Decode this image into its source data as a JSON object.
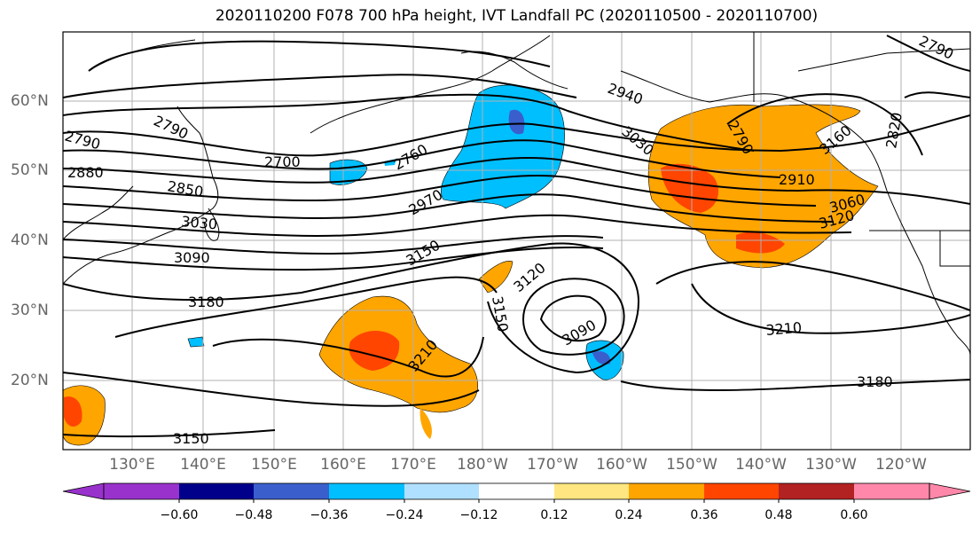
{
  "title": "2020110200 F078 700 hPa height, IVT Landfall PC (2020110500 - 2020110700)",
  "lat_labels": [
    "60°N",
    "50°N",
    "40°N",
    "30°N",
    "20°N"
  ],
  "lon_labels": [
    "130°E",
    "140°E",
    "150°E",
    "160°E",
    "170°E",
    "180°W",
    "170°W",
    "160°W",
    "150°W",
    "140°W",
    "130°W",
    "120°W"
  ],
  "contour_labels": [
    "2790",
    "2790",
    "2880",
    "2850",
    "3030",
    "3030",
    "3090",
    "3180",
    "3150",
    "2700",
    "2760",
    "2970",
    "3150",
    "2940",
    "3030",
    "3120",
    "3150",
    "3090",
    "3210",
    "2790",
    "2910",
    "3060",
    "3120",
    "3160",
    "2820",
    "3210",
    "3180",
    "2790"
  ],
  "colorbar": {
    "ticks": [
      "−0.60",
      "−0.48",
      "−0.36",
      "−0.24",
      "−0.12",
      "0.12",
      "0.24",
      "0.36",
      "0.48",
      "0.60"
    ],
    "colors": [
      "#9932cc",
      "#00008b",
      "#3a5fcd",
      "#00bfff",
      "#b0e0ff",
      "#ffffff",
      "#ffe680",
      "#ffa500",
      "#ff4500",
      "#b22222",
      "#ff88aa"
    ]
  }
}
